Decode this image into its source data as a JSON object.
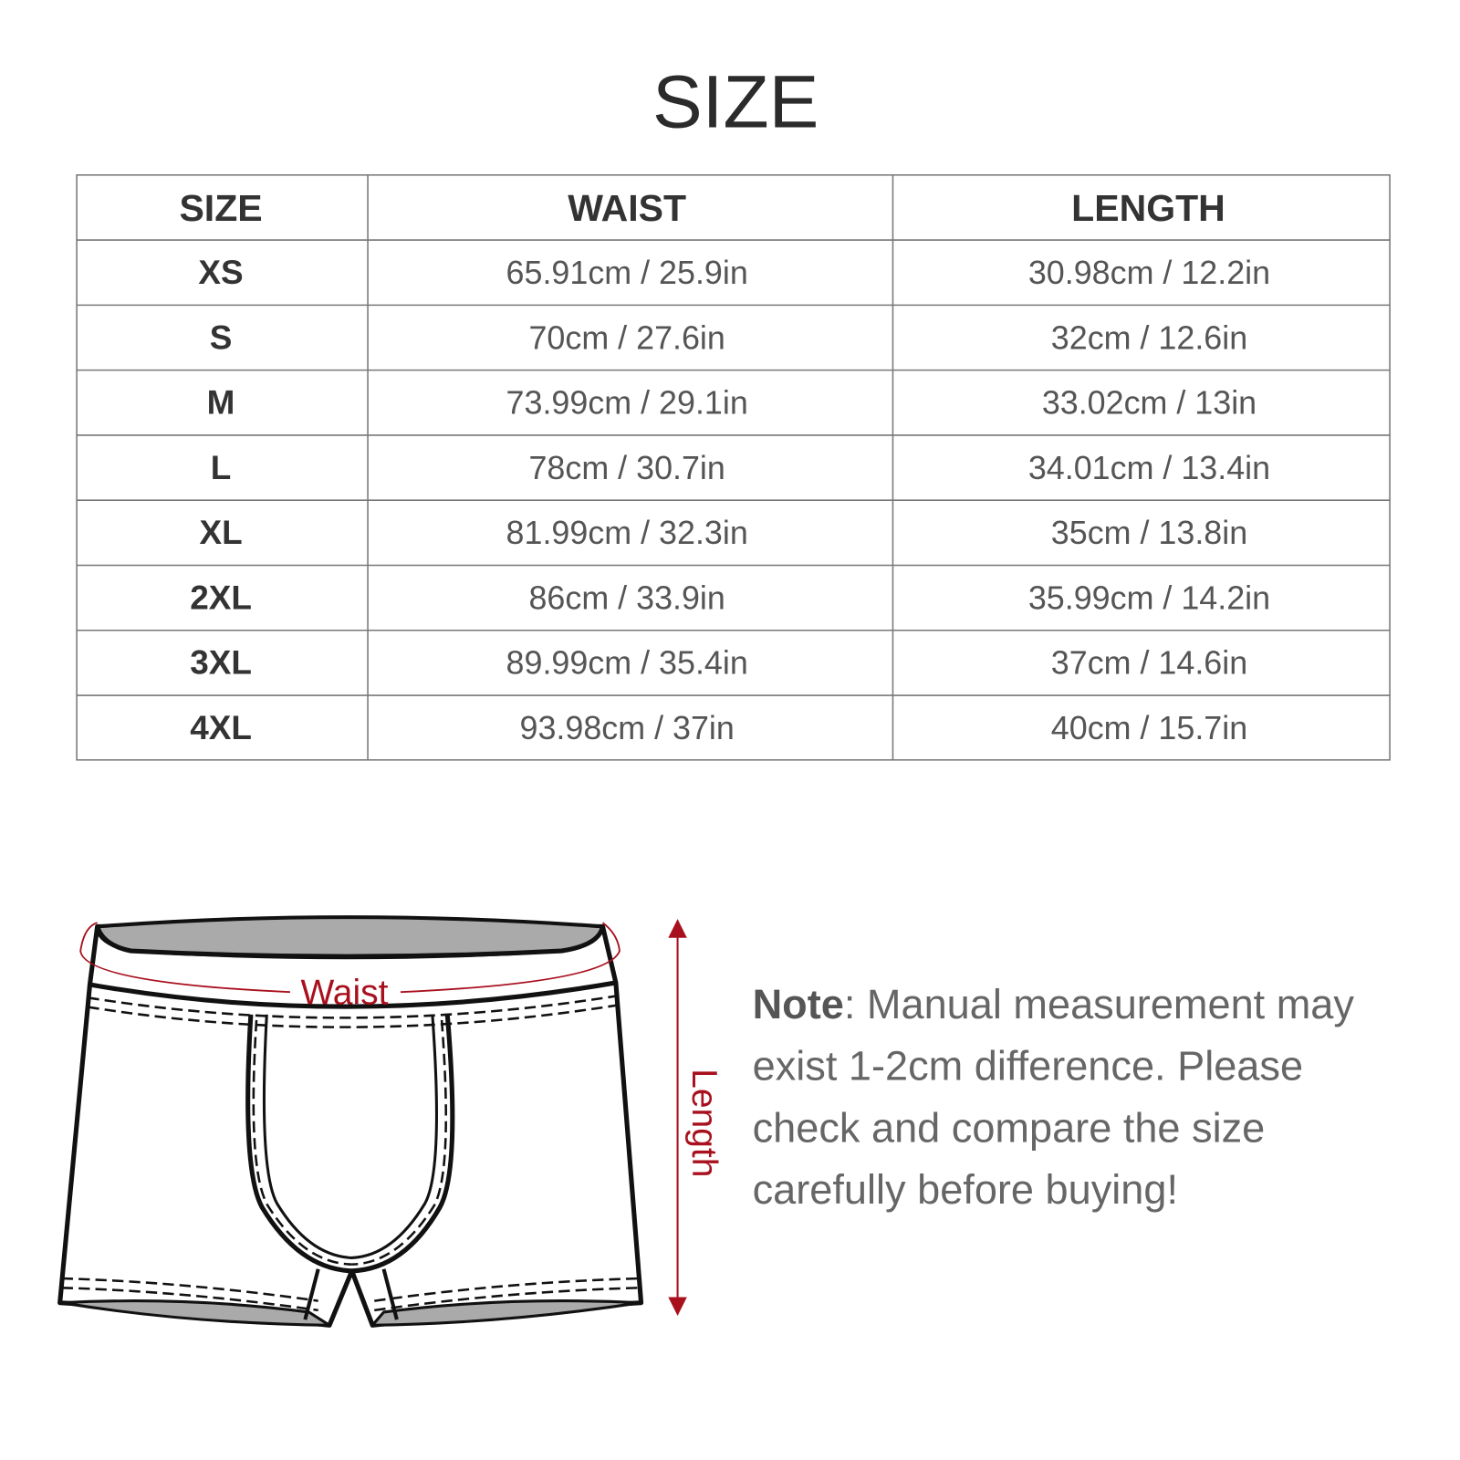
{
  "title": "SIZE",
  "table": {
    "headers": [
      "SIZE",
      "WAIST",
      "LENGTH"
    ],
    "rows": [
      {
        "size": "XS",
        "waist": "65.91cm / 25.9in",
        "length": "30.98cm / 12.2in"
      },
      {
        "size": "S",
        "waist": "70cm / 27.6in",
        "length": "32cm / 12.6in"
      },
      {
        "size": "M",
        "waist": "73.99cm / 29.1in",
        "length": "33.02cm / 13in"
      },
      {
        "size": "L",
        "waist": "78cm / 30.7in",
        "length": "34.01cm / 13.4in"
      },
      {
        "size": "XL",
        "waist": "81.99cm / 32.3in",
        "length": "35cm / 13.8in"
      },
      {
        "size": "2XL",
        "waist": "86cm / 33.9in",
        "length": "35.99cm / 14.2in"
      },
      {
        "size": "3XL",
        "waist": "89.99cm / 35.4in",
        "length": "37cm / 14.6in"
      },
      {
        "size": "4XL",
        "waist": "93.98cm / 37in",
        "length": "40cm / 15.7in"
      }
    ]
  },
  "diagram": {
    "waist_label": "Waist",
    "length_label": "Length",
    "accent_color": "#a8101e"
  },
  "note": {
    "bold": "Note",
    "lines": [
      ": Manual measurement may",
      "exist 1-2cm difference. Please",
      "check and compare the size",
      "carefully before buying!"
    ]
  }
}
